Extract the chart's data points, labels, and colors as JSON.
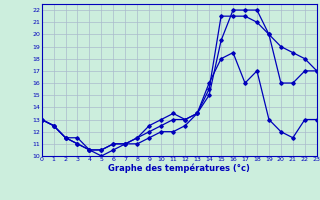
{
  "xlabel": "Graphe des températures (°c)",
  "bg_color": "#cceedd",
  "grid_color": "#aabbcc",
  "line_color": "#0000bb",
  "xlim": [
    0,
    23
  ],
  "ylim": [
    10,
    22.5
  ],
  "xticks": [
    0,
    1,
    2,
    3,
    4,
    5,
    6,
    7,
    8,
    9,
    10,
    11,
    12,
    13,
    14,
    15,
    16,
    17,
    18,
    19,
    20,
    21,
    22,
    23
  ],
  "yticks": [
    10,
    11,
    12,
    13,
    14,
    15,
    16,
    17,
    18,
    19,
    20,
    21,
    22
  ],
  "line1_x": [
    0,
    1,
    2,
    3,
    4,
    5,
    6,
    7,
    8,
    9,
    10,
    11,
    12,
    13,
    14,
    15,
    16,
    17,
    18,
    19,
    20,
    21,
    22,
    23
  ],
  "line1_y": [
    13,
    12.5,
    11.5,
    11.5,
    10.5,
    10,
    10.5,
    11,
    11,
    11.5,
    12,
    12,
    12.5,
    13.5,
    16,
    18,
    18.5,
    16,
    17,
    13,
    12,
    11.5,
    13,
    13
  ],
  "line2_x": [
    0,
    1,
    2,
    3,
    4,
    5,
    6,
    7,
    8,
    9,
    10,
    11,
    12,
    13,
    14,
    15,
    16,
    17,
    18,
    19,
    20,
    21,
    22,
    23
  ],
  "line2_y": [
    13,
    12.5,
    11.5,
    11,
    10.5,
    10.5,
    11,
    11,
    11.5,
    12,
    12.5,
    13,
    13,
    13.5,
    15.5,
    21.5,
    21.5,
    21.5,
    21,
    20,
    16,
    16,
    17,
    17
  ],
  "line3_x": [
    0,
    1,
    2,
    3,
    4,
    5,
    6,
    7,
    8,
    9,
    10,
    11,
    12,
    13,
    14,
    15,
    16,
    17,
    18,
    19,
    20,
    21,
    22,
    23
  ],
  "line3_y": [
    13,
    12.5,
    11.5,
    11,
    10.5,
    10.5,
    11,
    11,
    11.5,
    12.5,
    13,
    13.5,
    13,
    13.5,
    15,
    19.5,
    22,
    22,
    22,
    20,
    19,
    18.5,
    18,
    17
  ]
}
